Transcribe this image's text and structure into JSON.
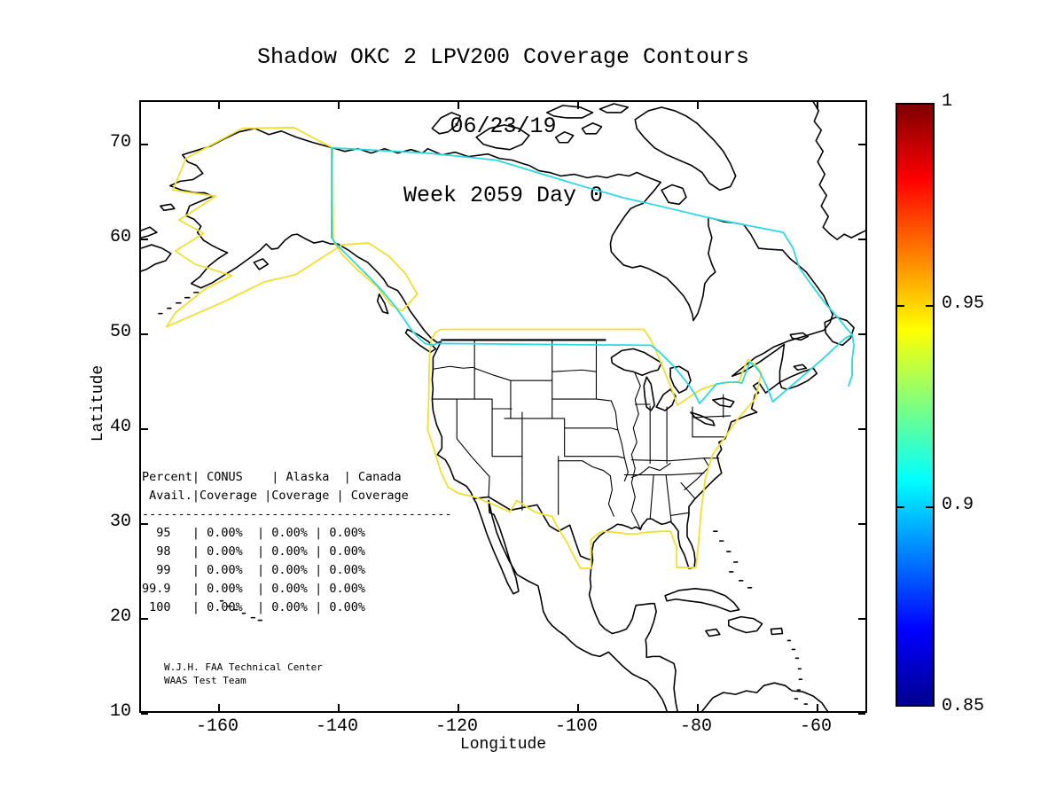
{
  "title": {
    "line1": "Shadow OKC 2 LPV200 Coverage Contours",
    "line2": "06/23/19",
    "line3": "Week 2059 Day 0"
  },
  "axes": {
    "x_label": "Longitude",
    "y_label": "Latitude",
    "x_ticks": [
      "-160",
      "-140",
      "-120",
      "-100",
      "-80",
      "-60"
    ],
    "y_ticks": [
      "70",
      "60",
      "50",
      "40",
      "30",
      "20",
      "10"
    ]
  },
  "colorbar": {
    "tick_labels": [
      "1",
      "0.95",
      "0.9",
      "0.85"
    ]
  },
  "coverage_table": {
    "lines": [
      "Percent| CONUS    | Alaska  | Canada",
      " Avail.|Coverage |Coverage | Coverage",
      "-------------------------------------------",
      "  95   | 0.00%  | 0.00% | 0.00%",
      "  98   | 0.00%  | 0.00% | 0.00%",
      "  99   | 0.00%  | 0.00% | 0.00%",
      "99.9   | 0.00%  | 0.00% | 0.00%",
      " 100   | 0.00%  | 0.00% | 0.00%"
    ]
  },
  "credit": {
    "line1": "W.J.H. FAA Technical Center",
    "line2": "WAAS Test Team"
  },
  "colors": {
    "contour_095": "#f2df30",
    "contour_090": "#2bd9e2",
    "coastline": "#000000"
  },
  "chart_data": {
    "type": "contour",
    "title": "Shadow OKC 2 LPV200 Coverage Contours",
    "date": "06/23/19",
    "week": 2059,
    "day": 0,
    "xlabel": "Longitude",
    "ylabel": "Latitude",
    "xlim": [
      -173,
      -51
    ],
    "ylim": [
      10,
      74.5
    ],
    "x_ticks": [
      -160,
      -140,
      -120,
      -100,
      -80,
      -60
    ],
    "y_ticks": [
      70,
      60,
      50,
      40,
      30,
      20,
      10
    ],
    "grid": false,
    "colorbar": {
      "colormap": "jet",
      "min": 0.85,
      "max": 1.0,
      "ticks": [
        1,
        0.95,
        0.9,
        0.85
      ],
      "position": "right"
    },
    "contours": [
      {
        "level": 0.95,
        "color": "#f2df30",
        "regions": [
          "CONUS boundary",
          "Alaska boundary"
        ]
      },
      {
        "level": 0.9,
        "color": "#2bd9e2",
        "regions": [
          "Canada boundary"
        ]
      }
    ],
    "coverage_table": {
      "row_header": "Percent Avail.",
      "columns": [
        "CONUS Coverage",
        "Alaska Coverage",
        "Canada Coverage"
      ],
      "rows": [
        {
          "percent": "95",
          "conus": "0.00%",
          "alaska": "0.00%",
          "canada": "0.00%"
        },
        {
          "percent": "98",
          "conus": "0.00%",
          "alaska": "0.00%",
          "canada": "0.00%"
        },
        {
          "percent": "99",
          "conus": "0.00%",
          "alaska": "0.00%",
          "canada": "0.00%"
        },
        {
          "percent": "99.9",
          "conus": "0.00%",
          "alaska": "0.00%",
          "canada": "0.00%"
        },
        {
          "percent": "100",
          "conus": "0.00%",
          "alaska": "0.00%",
          "canada": "0.00%"
        }
      ]
    }
  }
}
